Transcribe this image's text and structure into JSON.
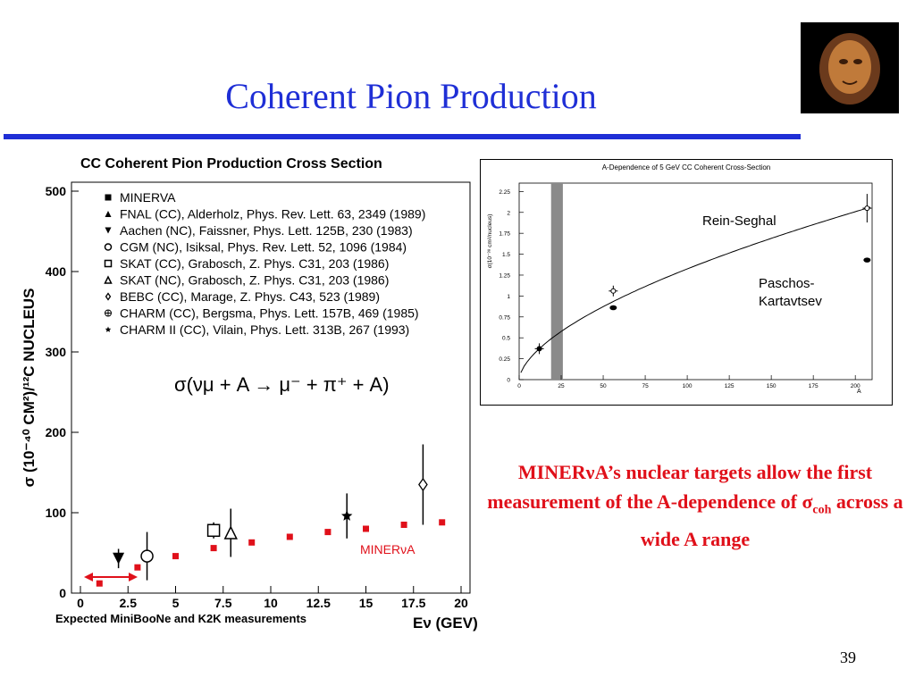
{
  "slide": {
    "title": "Coherent Pion Production",
    "page_number": "39",
    "callout_part1": "MINER",
    "callout_nu": "ν",
    "callout_part2": "A’s nuclear targets allow the first measurement of the A-dependence of ",
    "callout_sigma": "σ",
    "callout_sub": "coh",
    "callout_part3": " across a wide A range",
    "accent_color": "#1f2fd6",
    "callout_color": "#e0101a"
  },
  "chart_data": [
    {
      "type": "scatter",
      "title": "CC Coherent Pion Production Cross Section",
      "ylabel": "σ (10⁻⁴⁰ CM²)/¹²C NUCLEUS",
      "xlabel": "Eν (GEV)",
      "xlim": [
        0,
        20
      ],
      "ylim": [
        0,
        500
      ],
      "x_ticks": [
        "0",
        "2.5",
        "5",
        "7.5",
        "10",
        "12.5",
        "15",
        "17.5",
        "20"
      ],
      "y_ticks": [
        "0",
        "100",
        "200",
        "300",
        "400",
        "500"
      ],
      "formula": "σ(νμ + A → μ⁻ + π⁺ + A)",
      "legend": [
        "MINERVA",
        "FNAL (CC), Alderholz, Phys. Rev. Lett. 63, 2349 (1989)",
        "Aachen (NC), Faissner, Phys. Lett. 125B, 230 (1983)",
        "CGM (NC), Isiksal, Phys. Rev. Lett. 52, 1096 (1984)",
        "SKAT (CC), Grabosch, Z. Phys. C31, 203 (1986)",
        "SKAT (NC), Grabosch, Z. Phys. C31, 203 (1986)",
        "BEBC (CC), Marage, Z. Phys. C43, 523 (1989)",
        "CHARM (CC), Bergsma, Phys. Lett. 157B, 469 (1985)",
        "CHARM II (CC), Vilain, Phys. Lett. 313B, 267 (1993)"
      ],
      "series": [
        {
          "name": "MINERVA",
          "marker": "square",
          "color": "#e0101a",
          "x": [
            1,
            3,
            5,
            7,
            9,
            11,
            13,
            15,
            17,
            19
          ],
          "y": [
            12,
            32,
            46,
            56,
            63,
            70,
            76,
            80,
            85,
            88
          ]
        },
        {
          "name": "Aachen (NC)",
          "marker": "tri-down",
          "x": [
            2
          ],
          "y": [
            43
          ],
          "err": [
            12
          ]
        },
        {
          "name": "CGM (NC)",
          "marker": "circle",
          "x": [
            3.5
          ],
          "y": [
            46
          ],
          "err": [
            30
          ]
        },
        {
          "name": "SKAT (CC)",
          "marker": "square-open",
          "x": [
            7
          ],
          "y": [
            78
          ],
          "err": [
            10
          ]
        },
        {
          "name": "SKAT (NC)",
          "marker": "tri-up",
          "x": [
            7.9
          ],
          "y": [
            75
          ],
          "err": [
            30
          ]
        },
        {
          "name": "CHARM II (CC)",
          "marker": "star",
          "x": [
            14
          ],
          "y": [
            96
          ],
          "err": [
            28
          ]
        },
        {
          "name": "BEBC (CC)",
          "marker": "diamond",
          "x": [
            18
          ],
          "y": [
            135
          ],
          "err": [
            50
          ]
        }
      ],
      "annotations": {
        "minerva_label": "MINERνA",
        "bottom_left": "Expected MiniBooNe and K2K measurements"
      }
    },
    {
      "type": "line",
      "title": "A-Dependence of 5 GeV CC Coherent Cross-Section",
      "ylabel": "σ(10⁻³⁸ cm²/nucleus)",
      "xlabel": "A",
      "xlim": [
        0,
        210
      ],
      "ylim": [
        0,
        2.35
      ],
      "x_ticks": [
        "0",
        "25",
        "50",
        "75",
        "100",
        "125",
        "150",
        "175",
        "200"
      ],
      "y_ticks": [
        "0",
        "0.25",
        "0.5",
        "0.75",
        "1",
        "1.25",
        "1.5",
        "1.75",
        "2",
        "2.25"
      ],
      "shaded_band": [
        19,
        26
      ],
      "series": [
        {
          "name": "Rein-Seghal",
          "curve": "power",
          "x": [
            12,
            56,
            207
          ],
          "y": [
            0.37,
            1.06,
            2.05
          ]
        },
        {
          "name": "Paschos-Kartavtsev",
          "x": [
            56,
            207
          ],
          "y": [
            0.86,
            1.43
          ]
        }
      ],
      "labels": {
        "rein": "Rein-Seghal",
        "paschos_1": "Paschos-",
        "paschos_2": "Kartavtsev"
      }
    }
  ]
}
